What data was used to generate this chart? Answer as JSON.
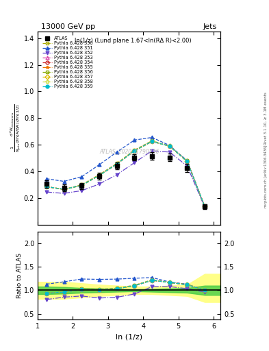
{
  "title": "13000 GeV pp",
  "title_right": "Jets",
  "annotation": "ln(1/z) (Lund plane 1.67<ln(RΔ R)<2.00)",
  "watermark": "ATLAS_2020_I1790256",
  "ylabel_main": "$\\frac{1}{N_{\\mathrm{jets}}}\\frac{d^2 N_{\\mathrm{emissions}}}{d\\ln(R/\\Delta R)\\,d\\ln(1/z)}$",
  "ylabel_ratio": "Ratio to ATLAS",
  "xlabel": "ln (1/z)",
  "xlim": [
    1.0,
    6.2
  ],
  "ylim_main": [
    0.0,
    1.45
  ],
  "ylim_ratio": [
    0.38,
    2.25
  ],
  "x_data": [
    1.25,
    1.75,
    2.25,
    2.75,
    3.25,
    3.75,
    4.25,
    4.75,
    5.25,
    5.75
  ],
  "atlas_y": [
    0.305,
    0.275,
    0.29,
    0.365,
    0.44,
    0.505,
    0.515,
    0.505,
    0.425,
    0.135
  ],
  "atlas_yerr": [
    0.03,
    0.025,
    0.025,
    0.025,
    0.025,
    0.025,
    0.03,
    0.03,
    0.03,
    0.02
  ],
  "band_yellow_lo": [
    0.82,
    0.82,
    0.85,
    0.88,
    0.9,
    0.92,
    0.92,
    0.9,
    0.88,
    0.75
  ],
  "band_yellow_hi": [
    1.18,
    1.18,
    1.15,
    1.12,
    1.1,
    1.08,
    1.08,
    1.1,
    1.12,
    1.35
  ],
  "band_green_lo": [
    0.92,
    0.93,
    0.95,
    0.96,
    0.97,
    0.98,
    0.97,
    0.96,
    0.95,
    0.9
  ],
  "band_green_hi": [
    1.08,
    1.07,
    1.05,
    1.04,
    1.03,
    1.02,
    1.03,
    1.04,
    1.05,
    1.1
  ],
  "series": [
    {
      "label": "Pythia 6.428 350",
      "color": "#aaaa00",
      "linestyle": "--",
      "marker": "s",
      "markerfill": "none",
      "y": [
        0.285,
        0.265,
        0.3,
        0.375,
        0.46,
        0.56,
        0.63,
        0.59,
        0.48,
        0.135
      ],
      "ratio": [
        0.935,
        0.964,
        1.034,
        1.027,
        1.045,
        1.109,
        1.224,
        1.168,
        1.129,
        1.0
      ]
    },
    {
      "label": "Pythia 6.428 351",
      "color": "#2255cc",
      "linestyle": "--",
      "marker": "^",
      "markerfill": "full",
      "y": [
        0.345,
        0.325,
        0.36,
        0.45,
        0.545,
        0.635,
        0.655,
        0.595,
        0.48,
        0.135
      ],
      "ratio": [
        1.131,
        1.182,
        1.241,
        1.233,
        1.239,
        1.257,
        1.272,
        1.178,
        1.129,
        1.0
      ]
    },
    {
      "label": "Pythia 6.428 352",
      "color": "#6644cc",
      "linestyle": "-.",
      "marker": "v",
      "markerfill": "full",
      "y": [
        0.245,
        0.235,
        0.255,
        0.305,
        0.375,
        0.465,
        0.555,
        0.545,
        0.44,
        0.13
      ],
      "ratio": [
        0.803,
        0.855,
        0.879,
        0.836,
        0.852,
        0.921,
        1.078,
        1.079,
        1.035,
        0.963
      ]
    },
    {
      "label": "Pythia 6.428 353",
      "color": "#dd44aa",
      "linestyle": "--",
      "marker": "^",
      "markerfill": "none",
      "y": [
        0.285,
        0.265,
        0.295,
        0.37,
        0.455,
        0.555,
        0.625,
        0.59,
        0.475,
        0.135
      ],
      "ratio": [
        0.935,
        0.964,
        1.017,
        1.014,
        1.034,
        1.099,
        1.214,
        1.168,
        1.118,
        1.0
      ]
    },
    {
      "label": "Pythia 6.428 354",
      "color": "#cc2222",
      "linestyle": "--",
      "marker": "o",
      "markerfill": "none",
      "y": [
        0.285,
        0.265,
        0.295,
        0.37,
        0.455,
        0.555,
        0.625,
        0.59,
        0.475,
        0.135
      ],
      "ratio": [
        0.935,
        0.964,
        1.017,
        1.014,
        1.034,
        1.099,
        1.214,
        1.168,
        1.118,
        1.0
      ]
    },
    {
      "label": "Pythia 6.428 355",
      "color": "#ee7700",
      "linestyle": "--",
      "marker": "*",
      "markerfill": "full",
      "y": [
        0.285,
        0.265,
        0.295,
        0.37,
        0.455,
        0.555,
        0.625,
        0.59,
        0.475,
        0.135
      ],
      "ratio": [
        0.935,
        0.964,
        1.017,
        1.014,
        1.034,
        1.099,
        1.214,
        1.168,
        1.118,
        1.0
      ]
    },
    {
      "label": "Pythia 6.428 356",
      "color": "#88aa00",
      "linestyle": "--",
      "marker": "s",
      "markerfill": "none",
      "y": [
        0.285,
        0.265,
        0.295,
        0.37,
        0.455,
        0.555,
        0.625,
        0.59,
        0.475,
        0.135
      ],
      "ratio": [
        0.935,
        0.964,
        1.017,
        1.014,
        1.034,
        1.099,
        1.214,
        1.168,
        1.118,
        1.0
      ]
    },
    {
      "label": "Pythia 6.428 357",
      "color": "#ddbb00",
      "linestyle": "--",
      "marker": "D",
      "markerfill": "none",
      "y": [
        0.285,
        0.265,
        0.295,
        0.37,
        0.455,
        0.555,
        0.625,
        0.59,
        0.475,
        0.135
      ],
      "ratio": [
        0.935,
        0.964,
        1.017,
        1.014,
        1.034,
        1.099,
        1.214,
        1.168,
        1.118,
        1.0
      ]
    },
    {
      "label": "Pythia 6.428 358",
      "color": "#ccdd44",
      "linestyle": "--",
      "marker": "p",
      "markerfill": "none",
      "y": [
        0.285,
        0.265,
        0.295,
        0.37,
        0.455,
        0.555,
        0.625,
        0.59,
        0.475,
        0.135
      ],
      "ratio": [
        0.935,
        0.964,
        1.017,
        1.014,
        1.034,
        1.099,
        1.214,
        1.168,
        1.118,
        1.0
      ]
    },
    {
      "label": "Pythia 6.428 359",
      "color": "#00bbcc",
      "linestyle": "--",
      "marker": "o",
      "markerfill": "full",
      "y": [
        0.285,
        0.265,
        0.295,
        0.37,
        0.455,
        0.555,
        0.625,
        0.59,
        0.475,
        0.135
      ],
      "ratio": [
        0.935,
        0.964,
        1.017,
        1.014,
        1.034,
        1.099,
        1.214,
        1.168,
        1.118,
        1.0
      ]
    }
  ],
  "xticks": [
    1,
    2,
    3,
    4,
    5,
    6
  ],
  "yticks_main": [
    0.2,
    0.4,
    0.6,
    0.8,
    1.0,
    1.2,
    1.4
  ],
  "yticks_ratio": [
    0.5,
    1.0,
    1.5,
    2.0
  ],
  "right_label": "Rivet 3.1.10, ≥ 3.1M events",
  "side_label": "mcplots.cern.ch [arXiv:1306.3436]"
}
